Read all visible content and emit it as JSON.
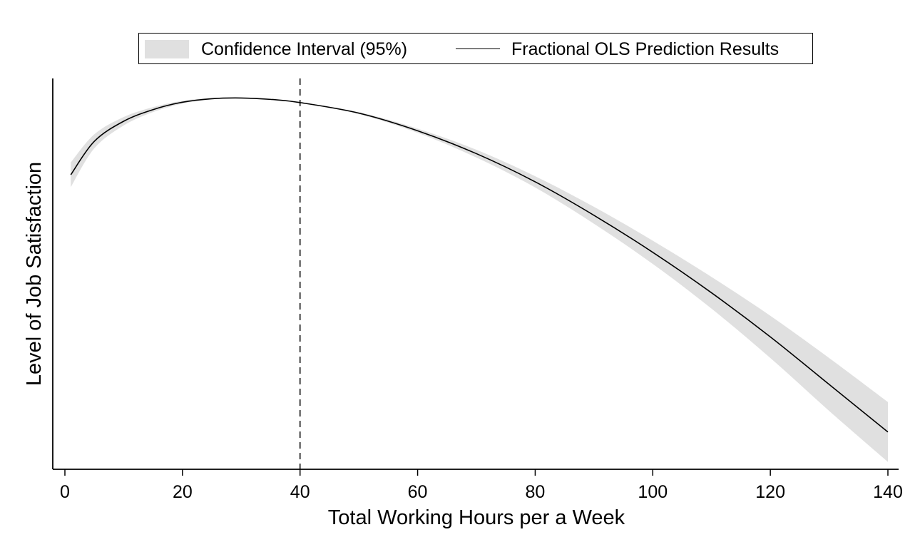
{
  "chart_data": {
    "type": "line",
    "xlabel": "Total Working Hours per a Week",
    "ylabel": "Level of Job Satisfaction",
    "xlim": [
      -2,
      142
    ],
    "xticks": [
      0,
      20,
      40,
      60,
      80,
      100,
      120,
      140
    ],
    "ylim": [
      0.0,
      1.0
    ],
    "y_ticks_shown": false,
    "grid": false,
    "legend": {
      "placement": "top",
      "entries": [
        "Confidence Interval (95%)",
        "Fractional OLS Prediction Results"
      ]
    },
    "reference_line": {
      "x": 40,
      "style": "dashed"
    },
    "series": [
      {
        "name": "Fractional OLS Prediction Results",
        "kind": "line",
        "x": [
          1,
          5,
          10,
          15,
          20,
          25,
          30,
          35,
          40,
          50,
          60,
          70,
          80,
          90,
          100,
          110,
          120,
          130,
          140
        ],
        "y": [
          0.765,
          0.86,
          0.917,
          0.95,
          0.971,
          0.981,
          0.983,
          0.979,
          0.97,
          0.94,
          0.89,
          0.825,
          0.745,
          0.65,
          0.545,
          0.43,
          0.305,
          0.17,
          0.035
        ]
      },
      {
        "name": "Confidence Interval (95%)",
        "kind": "band",
        "x": [
          1,
          5,
          10,
          15,
          20,
          25,
          30,
          35,
          40,
          50,
          60,
          70,
          80,
          90,
          100,
          110,
          120,
          130,
          140
        ],
        "lower": [
          0.73,
          0.84,
          0.905,
          0.943,
          0.967,
          0.979,
          0.982,
          0.978,
          0.969,
          0.937,
          0.884,
          0.814,
          0.729,
          0.626,
          0.512,
          0.385,
          0.245,
          0.095,
          -0.05
        ],
        "upper": [
          0.8,
          0.88,
          0.929,
          0.957,
          0.975,
          0.983,
          0.984,
          0.98,
          0.971,
          0.943,
          0.896,
          0.836,
          0.761,
          0.674,
          0.578,
          0.475,
          0.365,
          0.245,
          0.12
        ]
      }
    ]
  },
  "colors": {
    "band": "#e0e0e0",
    "line": "#000000",
    "axis": "#000000"
  }
}
